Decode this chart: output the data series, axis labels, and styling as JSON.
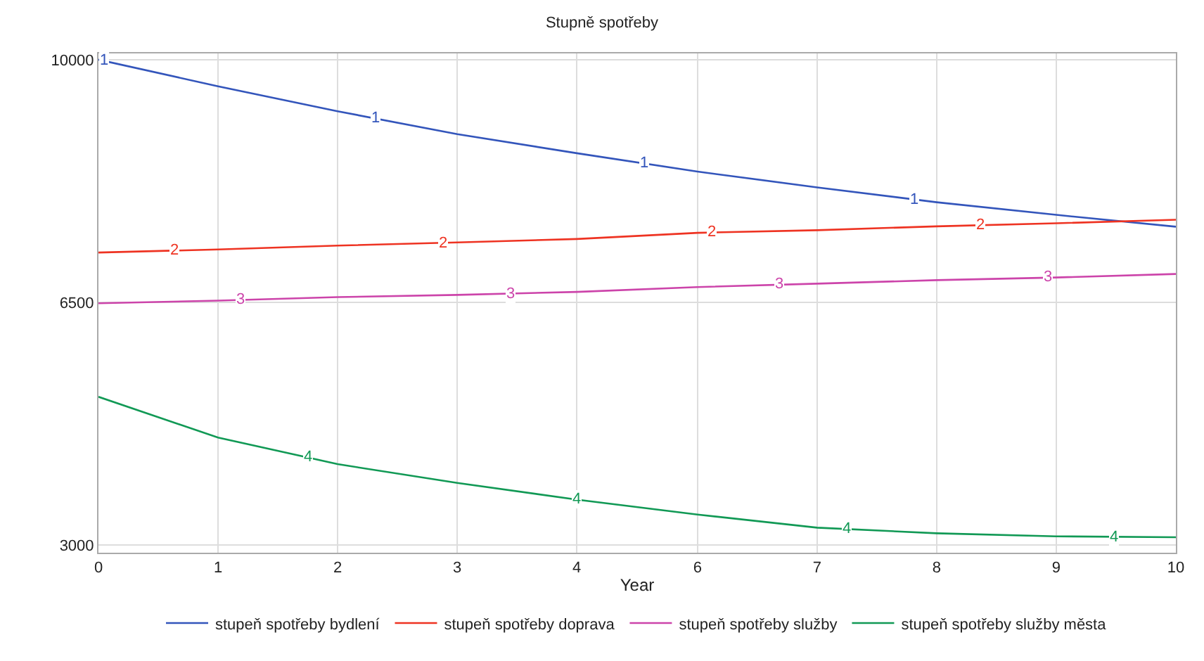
{
  "chart_data": {
    "type": "line",
    "title": "Stupně spotřeby",
    "xlabel": "Year",
    "x": [
      0,
      1.11,
      2.22,
      3.33,
      4.44,
      5.56,
      6.67,
      7.78,
      8.89,
      10
    ],
    "series": [
      {
        "name": "stupeň spotřeby bydlení",
        "color": "#3355bb",
        "values": [
          10000,
          9616,
          9256,
          8927,
          8651,
          8386,
          8159,
          7944,
          7762,
          7592
        ]
      },
      {
        "name": "stupeň spotřeby doprava",
        "color": "#ee3322",
        "values": [
          7219,
          7263,
          7319,
          7364,
          7414,
          7503,
          7541,
          7597,
          7641,
          7692
        ]
      },
      {
        "name": "stupeň spotřeby služby",
        "color": "#cc44aa",
        "values": [
          6487,
          6525,
          6576,
          6608,
          6651,
          6721,
          6770,
          6821,
          6859,
          6910
        ]
      },
      {
        "name": "stupeň spotřeby služby města",
        "color": "#119955",
        "values": [
          5138,
          4551,
          4167,
          3896,
          3656,
          3440,
          3251,
          3170,
          3126,
          3113
        ]
      }
    ],
    "xlim": [
      0,
      10
    ],
    "xticks": [
      0,
      {
        "value": 1.11,
        "label": "1"
      },
      {
        "value": 2.22,
        "label": "2"
      },
      {
        "value": 3.33,
        "label": "3"
      },
      {
        "value": 4.44,
        "label": "4"
      },
      {
        "value": 5.56,
        "label": "6"
      },
      {
        "value": 6.67,
        "label": "7"
      },
      {
        "value": 7.78,
        "label": "8"
      },
      {
        "value": 8.89,
        "label": "9"
      },
      10
    ],
    "ylim": [
      2890,
      10090
    ],
    "yticks": [
      3000,
      6500,
      10000
    ],
    "grid": true,
    "legend": "bottom",
    "marker": "none",
    "line_style": "solid",
    "annotations": [
      {
        "text": "1",
        "x": 0.05,
        "y": 9983
      },
      {
        "text": "1",
        "x": 2.57,
        "y": 9152
      },
      {
        "text": "1",
        "x": 5.07,
        "y": 8501
      },
      {
        "text": "1",
        "x": 7.57,
        "y": 7985
      },
      {
        "text": "2",
        "x": 0.7,
        "y": 7247
      },
      {
        "text": "2",
        "x": 3.2,
        "y": 7359
      },
      {
        "text": "2",
        "x": 5.69,
        "y": 7507
      },
      {
        "text": "2",
        "x": 8.19,
        "y": 7613
      },
      {
        "text": "3",
        "x": 1.32,
        "y": 6532
      },
      {
        "text": "3",
        "x": 3.82,
        "y": 6626
      },
      {
        "text": "3",
        "x": 6.32,
        "y": 6755
      },
      {
        "text": "3",
        "x": 8.81,
        "y": 6856
      },
      {
        "text": "4",
        "x": 1.94,
        "y": 4263
      },
      {
        "text": "4",
        "x": 4.44,
        "y": 3656
      },
      {
        "text": "4",
        "x": 6.94,
        "y": 3231
      },
      {
        "text": "4",
        "x": 9.43,
        "y": 3120
      }
    ]
  }
}
